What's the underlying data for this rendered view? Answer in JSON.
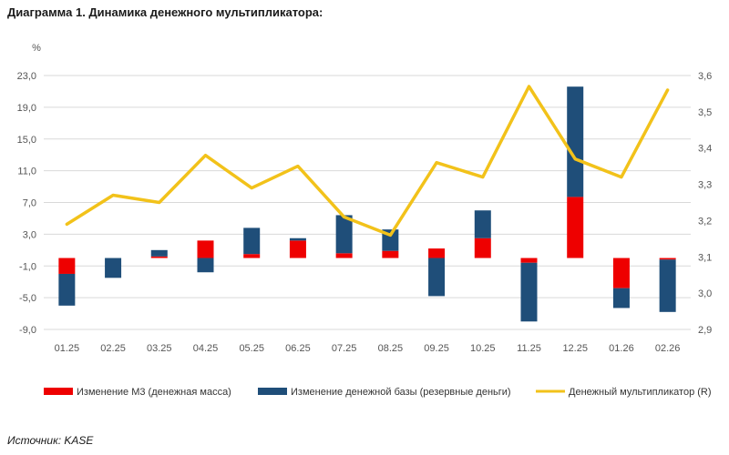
{
  "title": "Диаграмма 1. Динамика денежного мультипликатора:",
  "source": "Источник: KASE",
  "colors": {
    "m3": "#ee0000",
    "base": "#1f4e79",
    "mult": "#f2c21a",
    "grid": "#d9d9d9"
  },
  "chart_data": {
    "type": "bar",
    "stacked": true,
    "categories": [
      "01.25",
      "02.25",
      "03.25",
      "04.25",
      "05.25",
      "06.25",
      "07.25",
      "08.25",
      "09.25",
      "10.25",
      "11.25",
      "12.25",
      "01.26",
      "02.26"
    ],
    "series": [
      {
        "name": "Изменение М3 (денежная масса)",
        "axis": "left",
        "values": [
          -2.0,
          0.0,
          0.2,
          2.2,
          0.5,
          2.2,
          0.6,
          0.9,
          1.2,
          2.5,
          -0.6,
          7.7,
          -3.8,
          -0.2
        ]
      },
      {
        "name": "Изменение денежной базы (резервные деньги)",
        "axis": "left",
        "values": [
          -4.0,
          -2.5,
          0.8,
          -1.8,
          3.3,
          0.3,
          4.8,
          2.7,
          -4.8,
          3.5,
          -7.4,
          13.9,
          -2.5,
          -6.6
        ]
      },
      {
        "name": "Денежный мультипликатор (R)",
        "axis": "right",
        "type": "line",
        "values": [
          3.19,
          3.27,
          3.25,
          3.38,
          3.29,
          3.35,
          3.21,
          3.16,
          3.36,
          3.32,
          3.57,
          3.37,
          3.32,
          3.56
        ]
      }
    ],
    "y_left": {
      "label": "%",
      "min": -9.0,
      "max": 23.0,
      "ticks": [
        "-9,0",
        "-5,0",
        "-1,0",
        "3,0",
        "7,0",
        "11,0",
        "15,0",
        "19,0",
        "23,0"
      ]
    },
    "y_right": {
      "min": 2.9,
      "max": 3.6,
      "ticks": [
        "2,9",
        "3,0",
        "3,1",
        "3,2",
        "3,3",
        "3,4",
        "3,5",
        "3,6"
      ]
    },
    "grid": true,
    "legend_position": "bottom"
  }
}
